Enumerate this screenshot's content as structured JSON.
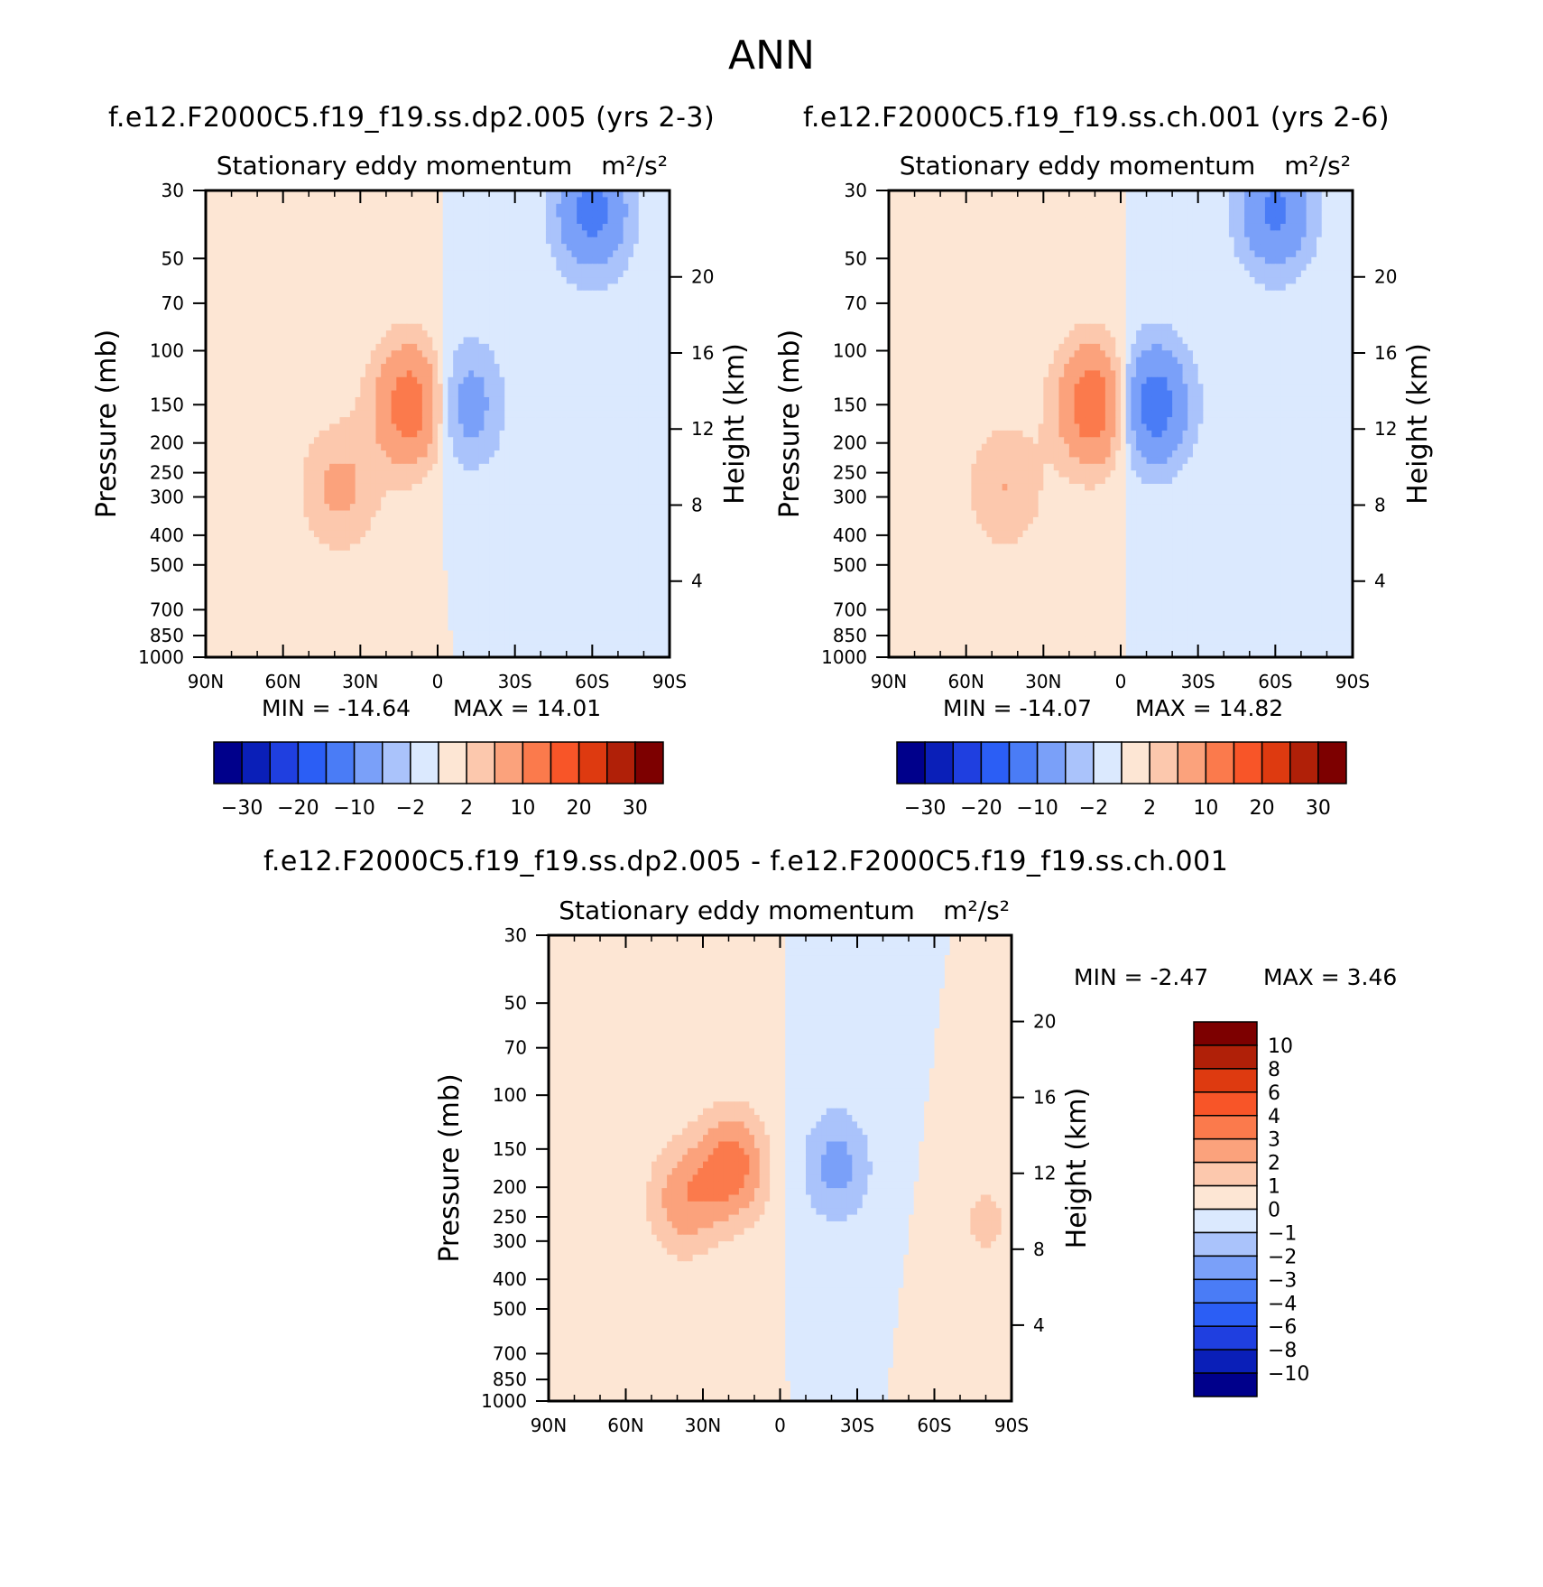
{
  "page_title": "ANN",
  "colors": {
    "abs_scale": [
      "#00008b",
      "#0a1fb8",
      "#1f3fe0",
      "#2b5ef5",
      "#4a7cf6",
      "#7aa0f9",
      "#aac3fb",
      "#dbe9fe",
      "#fde6d4",
      "#fcc8ad",
      "#fba27c",
      "#fb7a4c",
      "#f85528",
      "#de3a10",
      "#b02008",
      "#7d0000"
    ],
    "diff_scale": [
      "#00008b",
      "#0a1fb8",
      "#1f3fe0",
      "#2b5ef5",
      "#4a7cf6",
      "#7aa0f9",
      "#aac3fb",
      "#dbe9fe",
      "#fde6d4",
      "#fcc8ad",
      "#fba27c",
      "#fb7a4c",
      "#f85528",
      "#de3a10",
      "#b02008",
      "#7d0000"
    ]
  },
  "chart_data": [
    {
      "type": "heatmap",
      "title": "f.e12.F2000C5.f19_f19.ss.dp2.005 (yrs 2-3)",
      "subtitle": "Stationary eddy momentum",
      "units": "m²/s²",
      "xlabel": "",
      "ylabel": "Pressure (mb)",
      "y2label": "Height (km)",
      "x_tick_labels": [
        "90N",
        "60N",
        "30N",
        "0",
        "30S",
        "60S",
        "90S"
      ],
      "y_tick_labels": [
        "30",
        "50",
        "70",
        "100",
        "150",
        "200",
        "250",
        "300",
        "400",
        "500",
        "700",
        "850",
        "1000"
      ],
      "y2_tick_labels": [
        "20",
        "16",
        "12",
        "8",
        "4"
      ],
      "min_text": "MIN = -14.64",
      "max_text": "MAX = 14.01",
      "min": -14.64,
      "max": 14.01,
      "colorbar_labels": [
        "-30",
        "-20",
        "-10",
        "-2",
        "2",
        "10",
        "20",
        "30"
      ],
      "features": [
        {
          "lat": 10,
          "p": 150,
          "value": 14.0
        },
        {
          "lat": -10,
          "p": 150,
          "value": -8.0
        },
        {
          "lat": 38,
          "p": 280,
          "value": 6.0
        },
        {
          "lat": -60,
          "p": 35,
          "value": -12.0
        }
      ]
    },
    {
      "type": "heatmap",
      "title": "f.e12.F2000C5.f19_f19.ss.ch.001 (yrs 2-6)",
      "subtitle": "Stationary eddy momentum",
      "units": "m²/s²",
      "xlabel": "",
      "ylabel": "Pressure (mb)",
      "y2label": "Height (km)",
      "x_tick_labels": [
        "90N",
        "60N",
        "30N",
        "0",
        "30S",
        "60S",
        "90S"
      ],
      "y_tick_labels": [
        "30",
        "50",
        "70",
        "100",
        "150",
        "200",
        "250",
        "300",
        "400",
        "500",
        "700",
        "850",
        "1000"
      ],
      "y2_tick_labels": [
        "20",
        "16",
        "12",
        "8",
        "4"
      ],
      "min_text": "MIN = -14.07",
      "max_text": "MAX = 14.82",
      "min": -14.07,
      "max": 14.82,
      "colorbar_labels": [
        "-30",
        "-20",
        "-10",
        "-2",
        "2",
        "10",
        "20",
        "30"
      ],
      "features": [
        {
          "lat": 10,
          "p": 150,
          "value": 14.8
        },
        {
          "lat": -12,
          "p": 150,
          "value": -14.0
        },
        {
          "lat": 45,
          "p": 280,
          "value": 5.0
        },
        {
          "lat": -60,
          "p": 35,
          "value": -11.0
        }
      ]
    },
    {
      "type": "heatmap",
      "title": "f.e12.F2000C5.f19_f19.ss.dp2.005 - f.e12.F2000C5.f19_f19.ss.ch.001",
      "subtitle": "Stationary eddy momentum",
      "units": "m²/s²",
      "xlabel": "",
      "ylabel": "Pressure (mb)",
      "y2label": "Height (km)",
      "x_tick_labels": [
        "90N",
        "60N",
        "30N",
        "0",
        "30S",
        "60S",
        "90S"
      ],
      "y_tick_labels": [
        "30",
        "50",
        "70",
        "100",
        "150",
        "200",
        "250",
        "300",
        "400",
        "500",
        "700",
        "850",
        "1000"
      ],
      "y2_tick_labels": [
        "20",
        "16",
        "12",
        "8",
        "4"
      ],
      "min_text": "MIN = -2.47",
      "max_text": "MAX = 3.46",
      "min": -2.47,
      "max": 3.46,
      "colorbar_labels": [
        "10",
        "8",
        "6",
        "4",
        "3",
        "2",
        "1",
        "0",
        "-1",
        "-2",
        "-3",
        "-4",
        "-6",
        "-8",
        "-10"
      ],
      "features": [
        {
          "lat": 18,
          "p": 170,
          "value": 3.4
        },
        {
          "lat": 38,
          "p": 220,
          "value": 2.6
        },
        {
          "lat": -22,
          "p": 170,
          "value": -2.4
        },
        {
          "lat": -80,
          "p": 260,
          "value": 1.2
        }
      ]
    }
  ]
}
